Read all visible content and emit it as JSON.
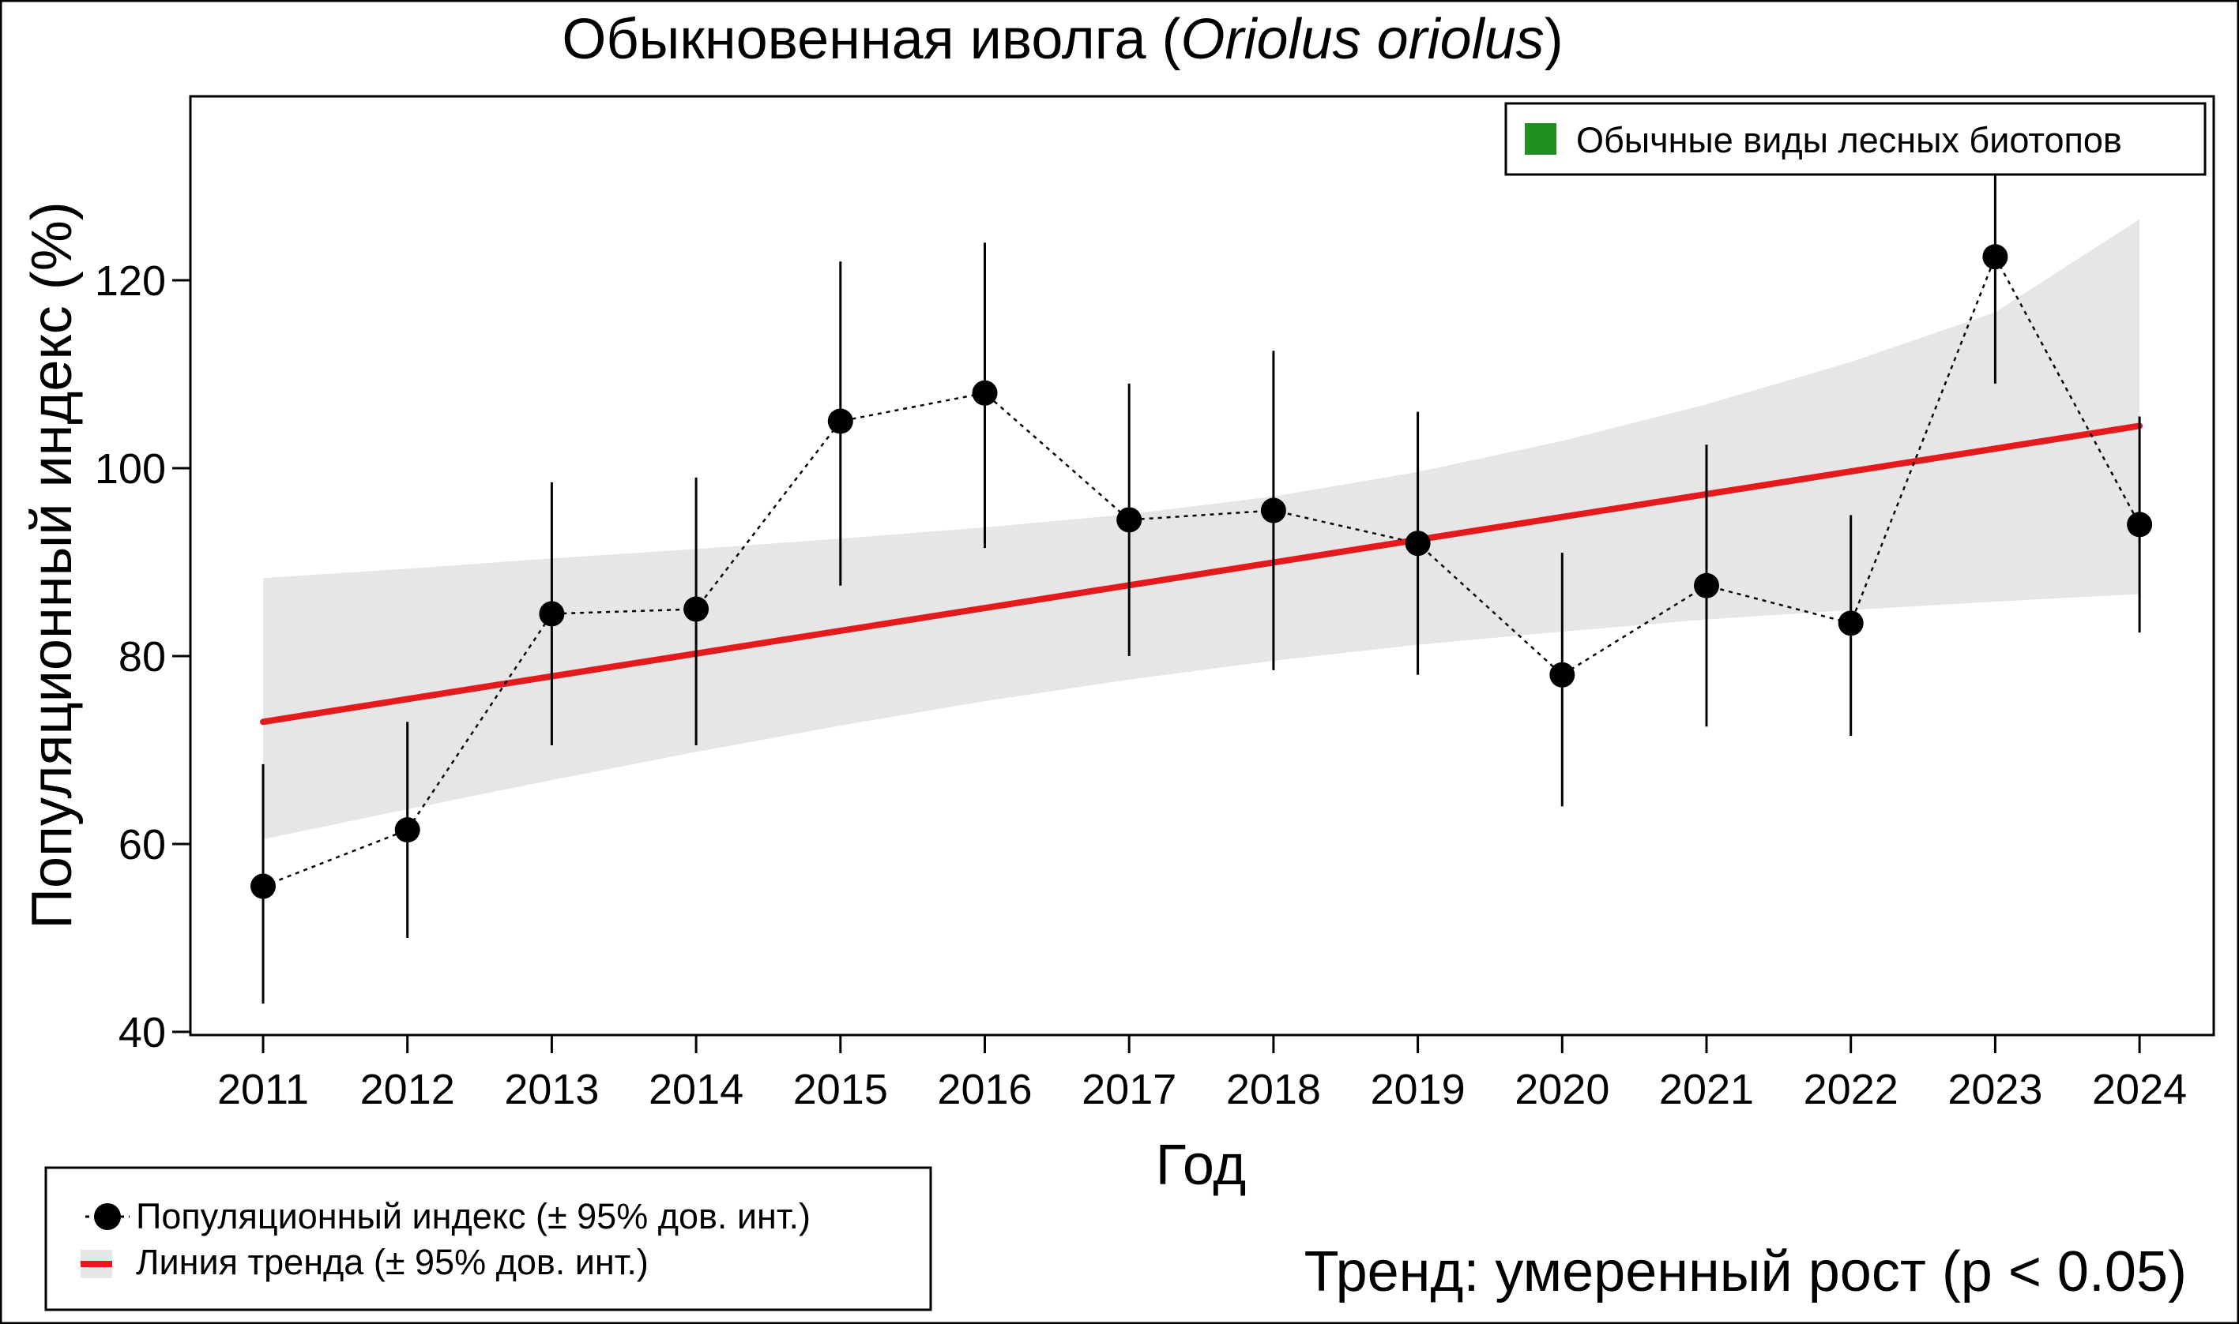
{
  "chart_data": {
    "type": "line",
    "title_main": "Обыкновенная иволга (",
    "title_species": "Oriolus oriolus",
    "title_end": ")",
    "xlabel": "Год",
    "ylabel": "Популяционный индекс (%)",
    "ylim": [
      38,
      138
    ],
    "yticks": [
      40,
      60,
      80,
      100,
      120
    ],
    "x": [
      2011,
      2012,
      2013,
      2014,
      2015,
      2016,
      2017,
      2018,
      2019,
      2020,
      2021,
      2022,
      2023,
      2024
    ],
    "index": {
      "name": "Популяционный индекс (± 95% дов. инт.)",
      "values": [
        55.5,
        61.5,
        84.5,
        85.0,
        105.0,
        108.0,
        94.5,
        95.5,
        92.0,
        78.0,
        87.5,
        83.5,
        122.5,
        94.0
      ],
      "lower": [
        43.0,
        50.0,
        70.5,
        70.5,
        87.5,
        91.5,
        80.0,
        78.5,
        78.0,
        64.0,
        72.5,
        71.5,
        109.0,
        82.5
      ],
      "upper": [
        68.5,
        73.0,
        98.5,
        99.0,
        122.0,
        124.0,
        109.0,
        112.5,
        106.0,
        91.0,
        102.5,
        95.0,
        137.0,
        105.5
      ]
    },
    "trend": {
      "name": "Линия тренда (± 95% дов. инт.)",
      "start": 73.0,
      "end": 104.5,
      "band_lower": [
        60.5,
        63.7,
        66.8,
        69.8,
        72.6,
        75.2,
        77.5,
        79.5,
        81.2,
        82.6,
        83.9,
        84.9,
        85.8,
        86.6
      ],
      "band_upper": [
        88.3,
        89.3,
        90.4,
        91.4,
        92.5,
        93.7,
        95.1,
        97.0,
        99.6,
        102.9,
        106.8,
        111.3,
        116.6,
        126.5
      ],
      "color": "#e41a1c",
      "band_color": "#e6e6e6"
    },
    "category_legend": {
      "label": "Обычные виды лесных биотопов",
      "color": "#1f8f1f"
    },
    "trend_result": {
      "text": "Тренд: умеренный рост (p < 0.05)",
      "color": "#2e9a2e"
    }
  }
}
